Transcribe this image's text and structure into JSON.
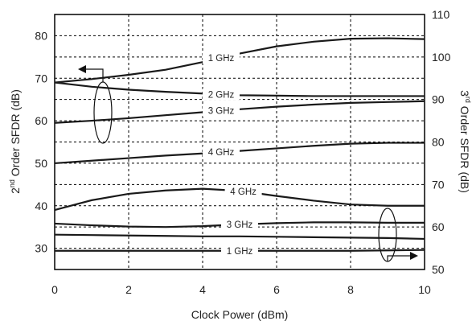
{
  "chart_data": {
    "type": "line",
    "xlabel": "Clock Power (dBm)",
    "ylabel_left": {
      "main": "2",
      "sup": "nd",
      "rest": " Order SFDR (dB)"
    },
    "ylabel_right": {
      "main": "3",
      "sup": "rd",
      "rest": " Order SFDR (dB)"
    },
    "xlim": [
      0,
      10
    ],
    "ylim_left": [
      25,
      85
    ],
    "ylim_right": [
      50,
      110
    ],
    "x_ticks": [
      0,
      2,
      4,
      6,
      8,
      10
    ],
    "y_ticks_left": [
      30,
      40,
      50,
      60,
      70,
      80
    ],
    "y_ticks_right": [
      50,
      60,
      70,
      80,
      90,
      100,
      110
    ],
    "grid": true,
    "series": [
      {
        "name": "1 GHz",
        "axis": "left",
        "x": [
          0,
          1,
          2,
          3,
          4,
          5,
          6,
          7,
          8,
          9,
          10
        ],
        "y": [
          69,
          69.8,
          70.8,
          72,
          73.8,
          75.8,
          77.5,
          78.6,
          79.3,
          79.4,
          79.2
        ],
        "label_x": 4.5
      },
      {
        "name": "2 GHz",
        "axis": "left",
        "x": [
          0,
          1,
          2,
          3,
          4,
          5,
          6,
          7,
          8,
          9,
          10
        ],
        "y": [
          69,
          68,
          67.3,
          66.8,
          66.4,
          66,
          65.9,
          65.8,
          65.8,
          65.8,
          65.8
        ],
        "label_x": 4.5
      },
      {
        "name": "3 GHz",
        "axis": "left",
        "x": [
          0,
          1,
          2,
          3,
          4,
          5,
          6,
          7,
          8,
          9,
          10
        ],
        "y": [
          59.5,
          60,
          60.6,
          61.3,
          62,
          62.7,
          63.3,
          63.8,
          64.2,
          64.4,
          64.6
        ],
        "label_x": 4.5
      },
      {
        "name": "4 GHz",
        "axis": "left",
        "x": [
          0,
          1,
          2,
          3,
          4,
          5,
          6,
          7,
          8,
          9,
          10
        ],
        "y": [
          50,
          50.6,
          51.2,
          51.8,
          52.3,
          52.9,
          53.5,
          54.1,
          54.6,
          54.8,
          54.8
        ],
        "label_x": 4.5
      },
      {
        "name": "4 GHz",
        "axis": "right",
        "x": [
          0,
          1,
          2,
          3,
          4,
          5,
          6,
          7,
          8,
          9,
          10
        ],
        "y": [
          64,
          66.3,
          67.8,
          68.6,
          69,
          68.5,
          67.3,
          66.2,
          65.3,
          65,
          65
        ],
        "label_x": 5.1
      },
      {
        "name": "3 GHz",
        "axis": "right",
        "x": [
          0,
          1,
          2,
          3,
          4,
          5,
          6,
          7,
          8,
          9,
          10
        ],
        "y": [
          60.8,
          60.4,
          60.1,
          60,
          60.2,
          60.6,
          60.9,
          61.1,
          61.1,
          61,
          61
        ],
        "label_x": 5.0
      },
      {
        "name": "",
        "axis": "right",
        "x": [
          0,
          1,
          2,
          3,
          4,
          5,
          6,
          7,
          8,
          9,
          10
        ],
        "y": [
          58.2,
          58.1,
          58,
          57.9,
          57.8,
          57.8,
          57.7,
          57.6,
          57.5,
          57.4,
          57.2
        ]
      },
      {
        "name": "1 GHz",
        "axis": "right",
        "x": [
          0,
          1,
          2,
          3,
          4,
          5,
          6,
          7,
          8,
          9,
          10
        ],
        "y": [
          54.4,
          54.4,
          54.4,
          54.4,
          54.4,
          54.4,
          54.4,
          54.4,
          54.4,
          54.5,
          54.6
        ],
        "label_x": 5.0
      }
    ]
  }
}
